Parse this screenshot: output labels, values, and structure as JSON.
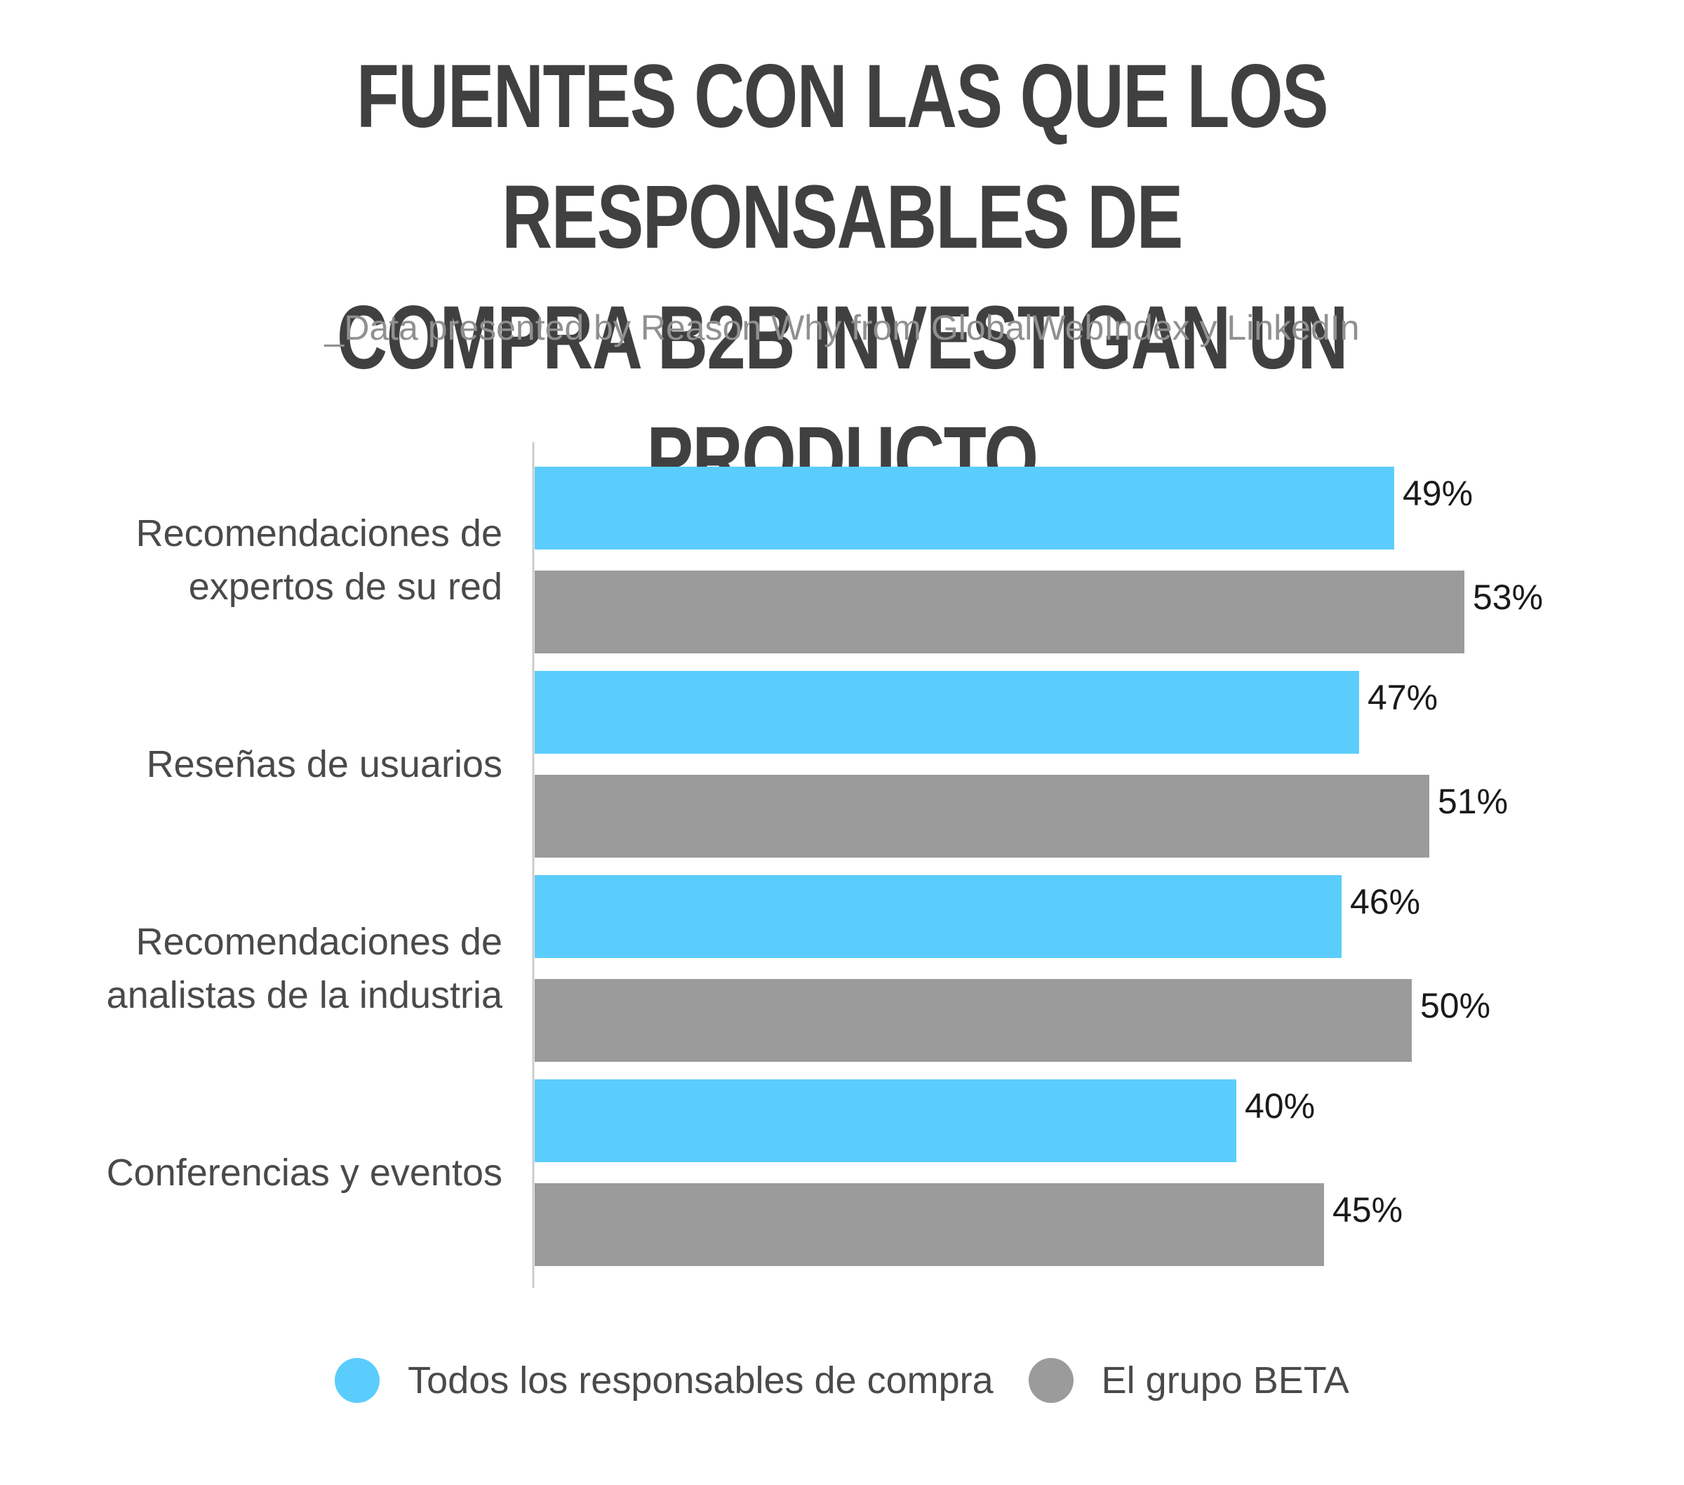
{
  "header": {
    "title": "FUENTES CON LAS QUE LOS RESPONSABLES DE\nCOMPRA B2B INVESTIGAN UN PRODUCTO",
    "subtitle": "_Data presented by Reason Why from GlobalWebIndex y LinkedIn"
  },
  "colors": {
    "series_1": "#5BCDFC",
    "series_2": "#9B9B9B",
    "axis": "#cccccc"
  },
  "chart_data": {
    "type": "bar",
    "orientation": "horizontal",
    "title": "FUENTES CON LAS QUE LOS RESPONSABLES DE COMPRA B2B INVESTIGAN UN PRODUCTO",
    "subtitle": "_Data presented by Reason Why from GlobalWebIndex y LinkedIn",
    "categories": [
      [
        "Recomendaciones de",
        "expertos de su red"
      ],
      [
        "Reseñas de usuarios"
      ],
      [
        "Recomendaciones de",
        "analistas de la industria"
      ],
      [
        "Conferencias y eventos"
      ]
    ],
    "series": [
      {
        "name": "Todos los responsables de compra",
        "values": [
          49,
          47,
          46,
          40
        ],
        "labels": [
          "49%",
          "47%",
          "46%",
          "40%"
        ]
      },
      {
        "name": "El grupo BETA",
        "values": [
          53,
          51,
          50,
          45
        ],
        "labels": [
          "53%",
          "51%",
          "50%",
          "45%"
        ]
      }
    ],
    "xlim": [
      0,
      60
    ],
    "grid": false,
    "legend_position": "bottom"
  }
}
